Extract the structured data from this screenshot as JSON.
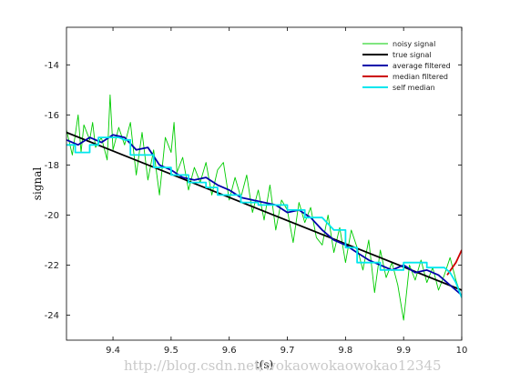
{
  "chart_data": {
    "type": "line",
    "xlabel": "t(s)",
    "ylabel": "signal",
    "xlim": [
      9.32,
      10.0
    ],
    "ylim": [
      -25.0,
      -12.5
    ],
    "xticks": [
      9.4,
      9.5,
      9.6,
      9.7,
      9.8,
      9.9,
      10
    ],
    "yticks": [
      -14,
      -16,
      -18,
      -20,
      -22,
      -24
    ],
    "grid": false,
    "legend_position": "top-right",
    "series": [
      {
        "name": "noisy signal",
        "color": "#00cc00",
        "x": [
          9.32,
          9.33,
          9.34,
          9.345,
          9.35,
          9.36,
          9.365,
          9.37,
          9.38,
          9.39,
          9.395,
          9.4,
          9.41,
          9.42,
          9.43,
          9.44,
          9.45,
          9.46,
          9.47,
          9.48,
          9.49,
          9.5,
          9.505,
          9.51,
          9.52,
          9.53,
          9.54,
          9.55,
          9.56,
          9.57,
          9.58,
          9.59,
          9.6,
          9.61,
          9.62,
          9.63,
          9.64,
          9.65,
          9.66,
          9.67,
          9.68,
          9.69,
          9.7,
          9.71,
          9.72,
          9.73,
          9.74,
          9.75,
          9.76,
          9.77,
          9.78,
          9.79,
          9.8,
          9.81,
          9.82,
          9.83,
          9.84,
          9.85,
          9.86,
          9.87,
          9.88,
          9.89,
          9.9,
          9.91,
          9.92,
          9.93,
          9.94,
          9.95,
          9.96,
          9.97,
          9.98,
          9.99,
          10.0
        ],
        "values": [
          -16.6,
          -17.6,
          -16.0,
          -17.5,
          -16.4,
          -17.0,
          -16.3,
          -17.3,
          -16.9,
          -17.8,
          -15.2,
          -17.4,
          -16.5,
          -17.2,
          -16.3,
          -18.4,
          -16.7,
          -18.6,
          -17.4,
          -19.2,
          -16.9,
          -17.5,
          -16.3,
          -18.3,
          -17.7,
          -19.0,
          -18.1,
          -18.7,
          -17.9,
          -19.2,
          -18.2,
          -17.9,
          -19.4,
          -18.5,
          -19.3,
          -18.4,
          -19.9,
          -19.0,
          -20.2,
          -18.8,
          -20.6,
          -19.4,
          -19.8,
          -21.1,
          -19.5,
          -20.3,
          -19.7,
          -20.9,
          -21.2,
          -20.0,
          -21.5,
          -20.5,
          -21.9,
          -20.6,
          -21.3,
          -22.2,
          -21.0,
          -23.1,
          -21.4,
          -22.5,
          -21.9,
          -22.8,
          -24.2,
          -22.0,
          -22.6,
          -21.8,
          -22.7,
          -22.1,
          -23.0,
          -22.4,
          -21.7,
          -22.6,
          -23.3
        ]
      },
      {
        "name": "true signal",
        "color": "#000000",
        "x": [
          9.32,
          10.0
        ],
        "values": [
          -16.7,
          -23.0
        ]
      },
      {
        "name": "average filtered",
        "color": "#0000aa",
        "x": [
          9.32,
          9.34,
          9.36,
          9.38,
          9.4,
          9.42,
          9.44,
          9.46,
          9.48,
          9.5,
          9.52,
          9.54,
          9.56,
          9.58,
          9.6,
          9.62,
          9.64,
          9.66,
          9.68,
          9.7,
          9.72,
          9.74,
          9.76,
          9.78,
          9.8,
          9.82,
          9.84,
          9.86,
          9.88,
          9.9,
          9.92,
          9.94,
          9.96,
          9.98,
          10.0
        ],
        "values": [
          -17.0,
          -17.2,
          -16.9,
          -17.1,
          -16.8,
          -16.9,
          -17.4,
          -17.3,
          -18.0,
          -18.2,
          -18.5,
          -18.6,
          -18.5,
          -18.8,
          -19.0,
          -19.3,
          -19.4,
          -19.5,
          -19.6,
          -19.9,
          -19.8,
          -20.1,
          -20.6,
          -21.0,
          -21.2,
          -21.5,
          -21.8,
          -22.0,
          -22.2,
          -22.0,
          -22.3,
          -22.2,
          -22.4,
          -22.8,
          -23.2
        ]
      },
      {
        "name": "median filtered",
        "color": "#cc0000",
        "x": [
          9.975,
          9.99,
          10.0
        ],
        "values": [
          -22.4,
          -21.9,
          -21.4
        ]
      },
      {
        "name": "self median",
        "color": "#00e6ee",
        "x": [
          9.32,
          9.335,
          9.335,
          9.36,
          9.36,
          9.375,
          9.375,
          9.4,
          9.41,
          9.42,
          9.43,
          9.43,
          9.45,
          9.46,
          9.47,
          9.47,
          9.5,
          9.5,
          9.52,
          9.53,
          9.53,
          9.56,
          9.56,
          9.58,
          9.58,
          9.62,
          9.62,
          9.65,
          9.65,
          9.7,
          9.7,
          9.73,
          9.73,
          9.76,
          9.78,
          9.8,
          9.8,
          9.82,
          9.82,
          9.86,
          9.86,
          9.9,
          9.9,
          9.94,
          9.94,
          9.97,
          9.98,
          9.99,
          10.0
        ],
        "values": [
          -17.2,
          -17.2,
          -17.5,
          -17.5,
          -17.2,
          -17.2,
          -16.9,
          -16.9,
          -16.9,
          -17.0,
          -17.0,
          -17.6,
          -17.6,
          -17.6,
          -17.6,
          -18.1,
          -18.1,
          -18.4,
          -18.4,
          -18.4,
          -18.7,
          -18.7,
          -18.9,
          -18.9,
          -19.2,
          -19.2,
          -19.5,
          -19.5,
          -19.6,
          -19.6,
          -19.8,
          -19.8,
          -20.1,
          -20.1,
          -20.6,
          -20.6,
          -21.3,
          -21.3,
          -21.9,
          -21.9,
          -22.2,
          -22.2,
          -21.9,
          -21.9,
          -22.1,
          -22.1,
          -22.3,
          -22.7,
          -23.3
        ]
      }
    ]
  },
  "watermark": "http://blog.csdn.net/wokaowokaowokao12345"
}
